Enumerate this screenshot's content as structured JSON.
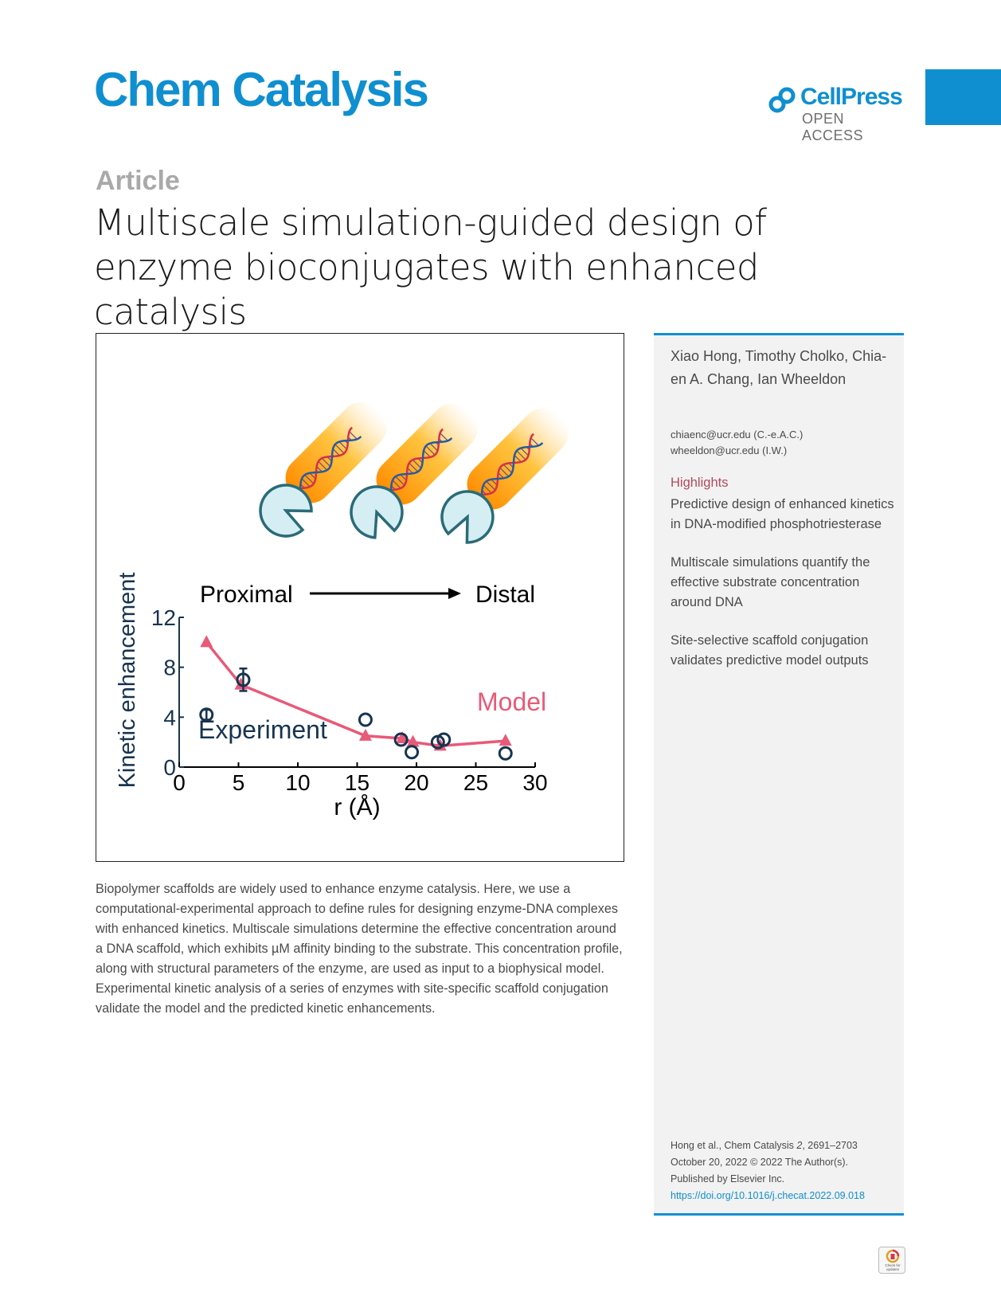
{
  "journal": "Chem Catalysis",
  "publisher": {
    "name": "CellPress",
    "access": "OPEN ACCESS"
  },
  "section": "Article",
  "title_lines": [
    "Multiscale simulation-guided design of",
    "enzyme bioconjugates with enhanced catalysis"
  ],
  "graphical_abstract": {
    "arrow_start": "Proximal",
    "arrow_end": "Distal",
    "model_label": "Model",
    "experiment_label": "Experiment"
  },
  "chart_data": {
    "type": "scatter",
    "xlabel": "r (Å)",
    "ylabel": "Kinetic enhancement",
    "xlim": [
      0,
      30
    ],
    "ylim": [
      0,
      12
    ],
    "x_ticks": [
      "0",
      "5",
      "10",
      "15",
      "20",
      "25",
      "30"
    ],
    "y_ticks": [
      "0",
      "4",
      "8",
      "12"
    ],
    "series": [
      {
        "name": "Model",
        "style": "line+triangle",
        "color": "#e85a78",
        "x": [
          2.3,
          5.2,
          15.7,
          18.8,
          19.7,
          22.0,
          27.5
        ],
        "y": [
          10.0,
          6.6,
          2.5,
          2.3,
          2.0,
          1.7,
          2.1
        ]
      },
      {
        "name": "Experiment",
        "style": "open-circle",
        "color": "#17344f",
        "x": [
          2.3,
          5.4,
          15.7,
          18.7,
          19.6,
          21.8,
          22.3,
          27.5
        ],
        "y": [
          4.2,
          7.0,
          3.8,
          2.2,
          1.2,
          2.0,
          2.2,
          1.1
        ],
        "err": [
          0.4,
          0.9,
          0.3,
          0.3,
          0.3,
          0.3,
          0.3,
          0.3
        ]
      }
    ]
  },
  "abstract": "Biopolymer scaffolds are widely used to enhance enzyme catalysis. Here, we use a computational-experimental approach to define rules for designing enzyme-DNA complexes with enhanced kinetics. Multiscale simulations determine the effective concentration around a DNA scaffold, which exhibits µM affinity binding to the substrate. This concentration profile, along with structural parameters of the enzyme, are used as input to a biophysical model. Experimental kinetic analysis of a series of enzymes with site-specific scaffold conjugation validate the model and the predicted kinetic enhancements.",
  "sidebar": {
    "authors": "Xiao Hong, Timothy Cholko, Chia-en A. Chang, Ian Wheeldon",
    "emails": [
      "chiaenc@ucr.edu (C.-e.A.C.)",
      "wheeldon@ucr.edu (I.W.)"
    ],
    "highlights_heading": "Highlights",
    "highlights": [
      "Predictive design of enhanced kinetics in DNA-modified phosphotriesterase",
      "Multiscale simulations quantify the effective substrate concentration around DNA",
      "Site-selective scaffold conjugation validates predictive model outputs"
    ],
    "citation": {
      "ref_prefix": "Hong et al., Chem Catalysis ",
      "volume": "2",
      "pages": ", 2691–2703",
      "date_line": "October 20, 2022 © 2022 The Author(s).",
      "publisher_line": "Published by Elsevier Inc.",
      "doi": "https://doi.org/10.1016/j.checat.2022.09.018"
    }
  },
  "check_updates": "Check for updates"
}
